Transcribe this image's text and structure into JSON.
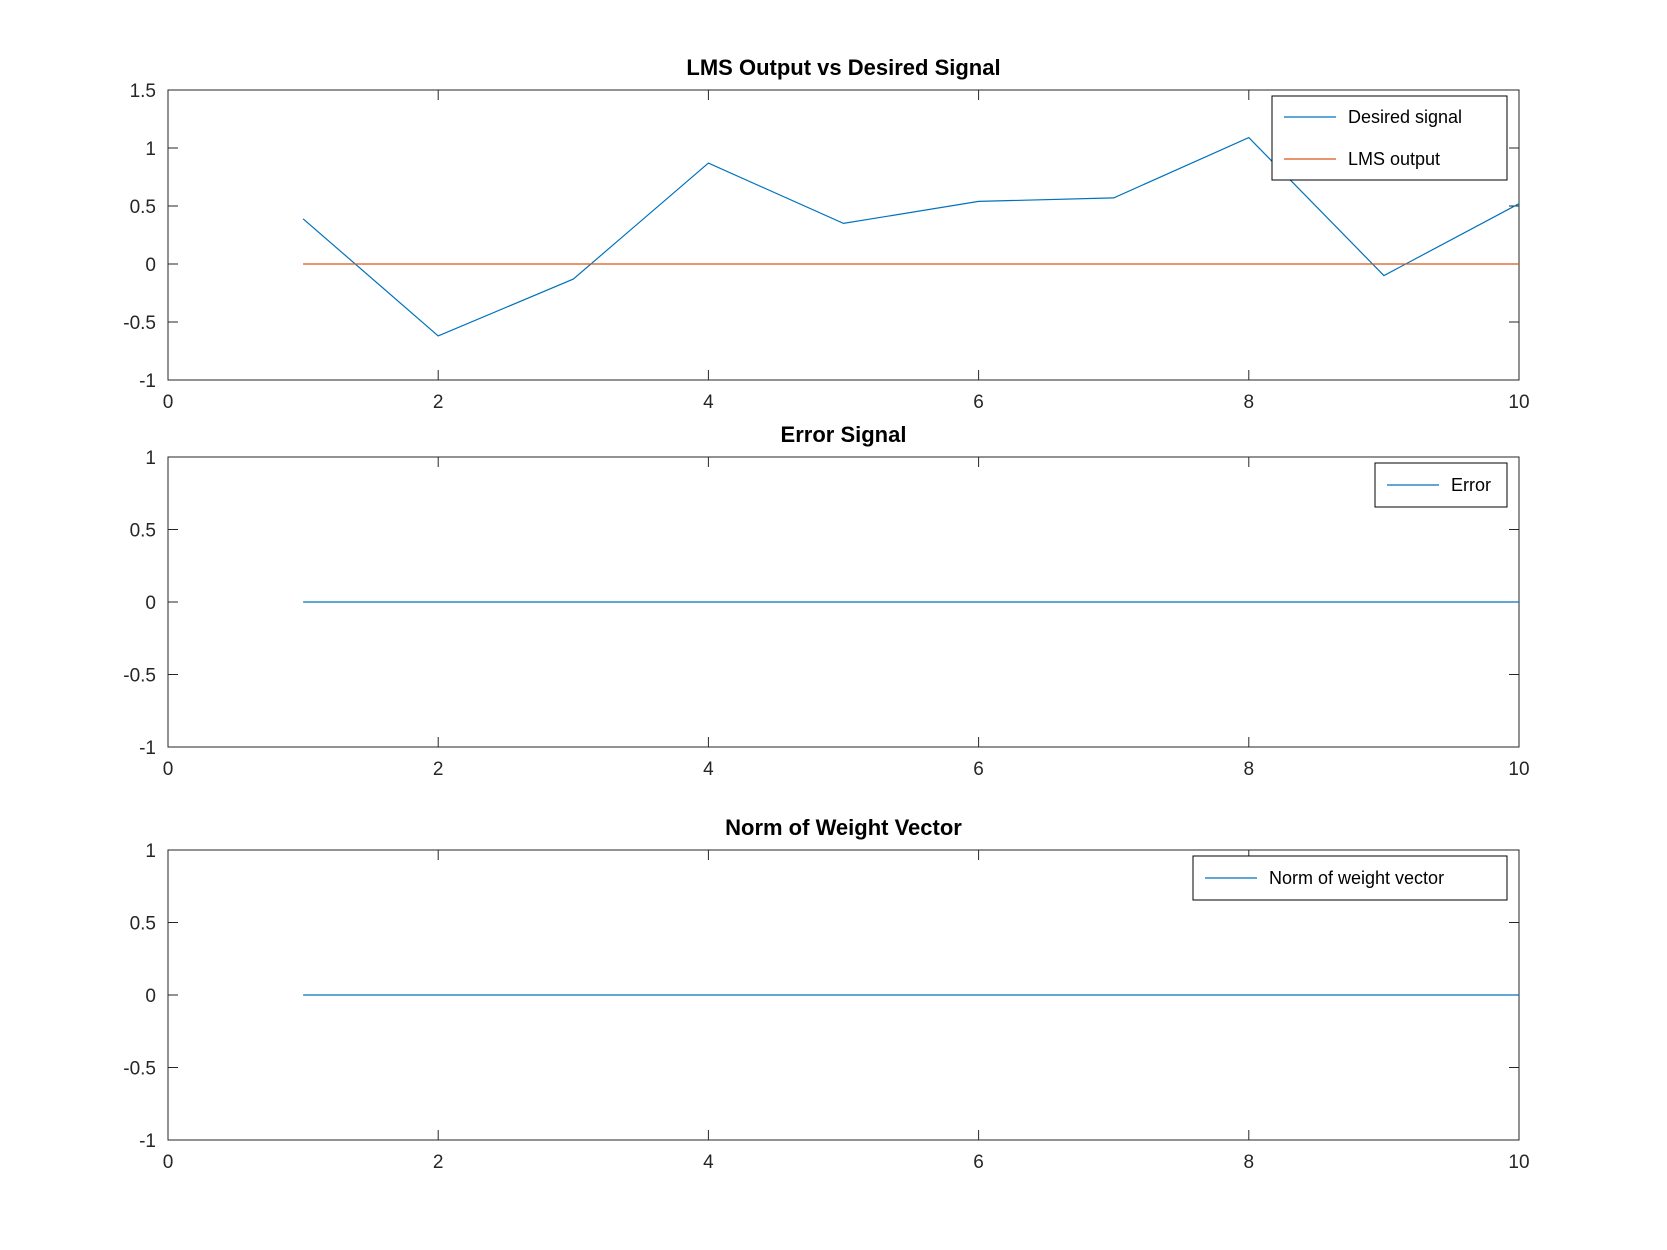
{
  "figure": {
    "background": "#ffffff"
  },
  "chart_data": [
    {
      "type": "line",
      "title": "LMS Output vs Desired Signal",
      "xlabel": "",
      "ylabel": "",
      "xlim": [
        0,
        10
      ],
      "ylim": [
        -1,
        1.5
      ],
      "xticks": [
        0,
        2,
        4,
        6,
        8,
        10
      ],
      "yticks": [
        -1,
        -0.5,
        0,
        0.5,
        1,
        1.5
      ],
      "grid": false,
      "legend_position": "top-right",
      "series": [
        {
          "name": "Desired signal",
          "color": "#0072bd",
          "x": [
            1,
            2,
            3,
            4,
            5,
            6,
            7,
            8,
            9,
            10
          ],
          "y": [
            0.39,
            -0.62,
            -0.13,
            0.87,
            0.35,
            0.54,
            0.57,
            1.09,
            -0.1,
            0.52
          ]
        },
        {
          "name": "LMS output",
          "color": "#d95319",
          "x": [
            1,
            2,
            3,
            4,
            5,
            6,
            7,
            8,
            9,
            10
          ],
          "y": [
            0,
            0,
            0,
            0,
            0,
            0,
            0,
            0,
            0,
            0
          ]
        }
      ]
    },
    {
      "type": "line",
      "title": "Error Signal",
      "xlabel": "",
      "ylabel": "",
      "xlim": [
        0,
        10
      ],
      "ylim": [
        -1,
        1
      ],
      "xticks": [
        0,
        2,
        4,
        6,
        8,
        10
      ],
      "yticks": [
        -1,
        -0.5,
        0,
        0.5,
        1
      ],
      "grid": false,
      "legend_position": "top-right",
      "series": [
        {
          "name": "Error",
          "color": "#0072bd",
          "x": [
            1,
            2,
            3,
            4,
            5,
            6,
            7,
            8,
            9,
            10
          ],
          "y": [
            0,
            0,
            0,
            0,
            0,
            0,
            0,
            0,
            0,
            0
          ]
        }
      ]
    },
    {
      "type": "line",
      "title": "Norm of Weight Vector",
      "xlabel": "",
      "ylabel": "",
      "xlim": [
        0,
        10
      ],
      "ylim": [
        -1,
        1
      ],
      "xticks": [
        0,
        2,
        4,
        6,
        8,
        10
      ],
      "yticks": [
        -1,
        -0.5,
        0,
        0.5,
        1
      ],
      "grid": false,
      "legend_position": "top-right",
      "series": [
        {
          "name": "Norm of weight vector",
          "color": "#0072bd",
          "x": [
            1,
            2,
            3,
            4,
            5,
            6,
            7,
            8,
            9,
            10
          ],
          "y": [
            0,
            0,
            0,
            0,
            0,
            0,
            0,
            0,
            0,
            0
          ]
        }
      ]
    }
  ]
}
